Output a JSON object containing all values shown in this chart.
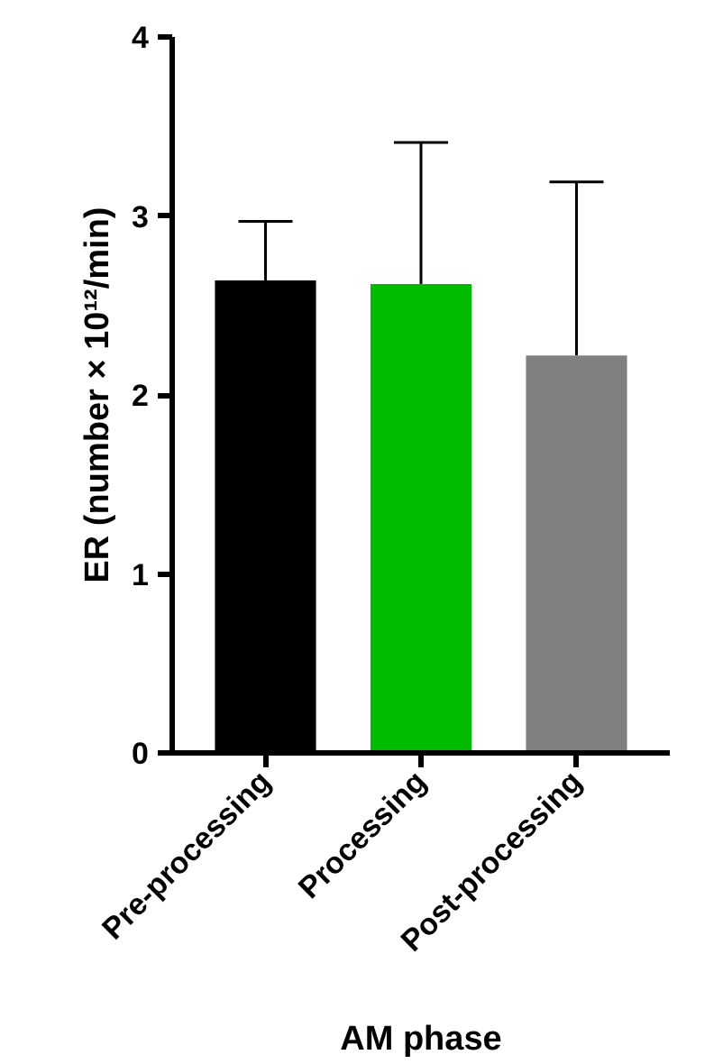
{
  "chart_data": {
    "type": "bar",
    "xlabel": "AM phase",
    "ylabel": "ER (number × 10¹²/min)",
    "categories": [
      "Pre-processing",
      "Processing",
      "Post-processing"
    ],
    "values": [
      2.64,
      2.62,
      2.22
    ],
    "colors": [
      "#000000",
      "#00bb00",
      "#808080"
    ],
    "errors": [
      [
        2.64,
        2.97
      ],
      [
        2.62,
        3.41
      ],
      [
        2.22,
        3.19
      ]
    ],
    "ylim": [
      0,
      4
    ],
    "yticks": [
      0,
      1,
      2,
      3,
      4
    ],
    "grid": false
  }
}
